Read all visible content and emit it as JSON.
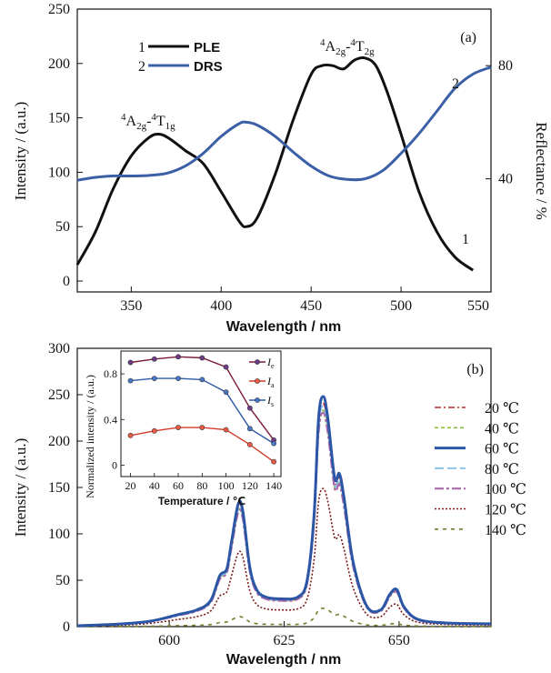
{
  "chart_data": [
    {
      "panel": "(a)",
      "type": "line",
      "xlabel": "Wavelength / nm",
      "ylabel": "Intensity / (a.u.)",
      "y2label": "Reflectance / %",
      "xlim": [
        320,
        550
      ],
      "ylim": [
        -10,
        250
      ],
      "y2lim": [
        0,
        100
      ],
      "xticks": [
        350,
        400,
        450,
        500,
        550
      ],
      "yticks": [
        0,
        50,
        100,
        150,
        200,
        250
      ],
      "y2ticks": [
        40,
        80
      ],
      "legend": [
        {
          "num": "1",
          "name": "PLE",
          "color": "#111111"
        },
        {
          "num": "2",
          "name": "DRS",
          "color": "#3b5fa6"
        }
      ],
      "annotations": [
        {
          "text": "4A2g-4T1g",
          "main": "A",
          "sub1": "2g",
          "sep": "-",
          "main2": "T",
          "sub2": "1g",
          "sup": "4"
        },
        {
          "text": "4A2g-4T2g",
          "main": "A",
          "sub1": "2g",
          "sep": "-",
          "main2": "T",
          "sub2": "2g",
          "sup": "4"
        },
        {
          "text": "1"
        },
        {
          "text": "2"
        }
      ],
      "series": [
        {
          "name": "PLE",
          "color": "#111111",
          "axis": "left",
          "x": [
            320,
            330,
            340,
            350,
            360,
            366,
            372,
            380,
            390,
            400,
            410,
            414,
            420,
            430,
            440,
            450,
            456,
            462,
            468,
            474,
            480,
            486,
            492,
            500,
            510,
            520,
            530,
            540
          ],
          "y": [
            15,
            45,
            85,
            115,
            132,
            135,
            130,
            120,
            108,
            82,
            55,
            50,
            58,
            98,
            148,
            190,
            198,
            198,
            195,
            203,
            205,
            198,
            175,
            135,
            82,
            45,
            22,
            10
          ]
        },
        {
          "name": "DRS",
          "color": "#3b5fa6",
          "axis": "right",
          "x": [
            320,
            330,
            340,
            350,
            360,
            370,
            380,
            390,
            400,
            410,
            414,
            420,
            430,
            440,
            450,
            460,
            470,
            480,
            490,
            500,
            510,
            520,
            530,
            540,
            550
          ],
          "y": [
            39.5,
            40.5,
            41.0,
            41.0,
            41.2,
            42.0,
            44.5,
            49.0,
            55.0,
            59.5,
            60.0,
            59.0,
            55.0,
            49.5,
            44.5,
            41.0,
            39.8,
            40.0,
            43.0,
            49.0,
            56.0,
            64.0,
            72.0,
            77.0,
            79.5
          ]
        }
      ],
      "curve_labels": [
        {
          "text": "1",
          "series": "PLE"
        },
        {
          "text": "2",
          "series": "DRS"
        }
      ]
    },
    {
      "panel": "(b)",
      "type": "line",
      "xlabel": "Wavelength / nm",
      "ylabel": "Intensity / (a.u.)",
      "xlim": [
        580,
        670
      ],
      "ylim": [
        0,
        300
      ],
      "xticks": [
        600,
        625,
        650
      ],
      "yticks": [
        0,
        50,
        100,
        150,
        200,
        250,
        300
      ],
      "temperature_unit": "℃",
      "series": [
        {
          "name": "20 ℃",
          "temp": "20",
          "color": "#c0282e",
          "dash": "7,3,2,3",
          "width": 1.6,
          "scale": 0.97
        },
        {
          "name": "40 ℃",
          "temp": "40",
          "color": "#8bbf3a",
          "dash": "4,3",
          "width": 1.6,
          "scale": 0.94
        },
        {
          "name": "60 ℃",
          "temp": "60",
          "color": "#2b56a6",
          "dash": "",
          "width": 3.0,
          "scale": 1.0
        },
        {
          "name": "80 ℃",
          "temp": "80",
          "color": "#8fc3e8",
          "dash": "10,4",
          "width": 2.0,
          "scale": 0.96
        },
        {
          "name": "100 ℃",
          "temp": "100",
          "color": "#a86aa8",
          "dash": "10,3,3,3",
          "width": 2.2,
          "scale": 0.93
        },
        {
          "name": "120 ℃",
          "temp": "120",
          "color": "#7a1a1a",
          "dash": "2,2",
          "width": 1.6,
          "scale": 0.6
        },
        {
          "name": "140 ℃",
          "temp": "140",
          "color": "#7a7a2a",
          "dash": "4,5",
          "width": 1.6,
          "scale": 0.08
        }
      ],
      "base_spectrum": {
        "x": [
          580,
          590,
          596,
          602,
          606,
          609,
          611,
          612.5,
          613.5,
          615,
          616,
          617.5,
          619,
          621,
          624,
          628,
          630,
          631.5,
          632.5,
          633.5,
          634.5,
          636,
          637,
          638,
          640,
          643,
          646,
          648,
          649.5,
          651,
          654,
          660,
          670
        ],
        "y": [
          1,
          3,
          6,
          13,
          18,
          28,
          55,
          62,
          90,
          132,
          125,
          65,
          40,
          32,
          30,
          32,
          50,
          120,
          225,
          248,
          225,
          160,
          165,
          140,
          70,
          22,
          18,
          35,
          40,
          22,
          8,
          4,
          3
        ]
      },
      "inset": {
        "type": "line",
        "xlabel": "Temperature / ℃",
        "ylabel": "Normalized intensity / (a.u.)",
        "xlim": [
          12,
          146
        ],
        "ylim": [
          -0.1,
          1.0
        ],
        "xticks": [
          20,
          40,
          60,
          80,
          100,
          120,
          140
        ],
        "yticks": [
          0,
          0.4,
          0.8
        ],
        "x": [
          20,
          40,
          60,
          80,
          100,
          120,
          140
        ],
        "legend_placement": "right",
        "series": [
          {
            "name": "Ie",
            "main": "I",
            "sub": "e",
            "color": "#7b1a3a",
            "marker": "#6f3a8a",
            "values": [
              0.9,
              0.93,
              0.95,
              0.94,
              0.86,
              0.5,
              0.22
            ]
          },
          {
            "name": "Ia",
            "main": "I",
            "sub": "a",
            "color": "#d53a2a",
            "marker": "#ee5a44",
            "values": [
              0.26,
              0.3,
              0.33,
              0.33,
              0.31,
              0.18,
              0.03
            ]
          },
          {
            "name": "Is",
            "main": "I",
            "sub": "s",
            "color": "#2f5aa6",
            "marker": "#4a78c8",
            "values": [
              0.74,
              0.76,
              0.76,
              0.75,
              0.64,
              0.32,
              0.19
            ]
          }
        ]
      }
    }
  ]
}
